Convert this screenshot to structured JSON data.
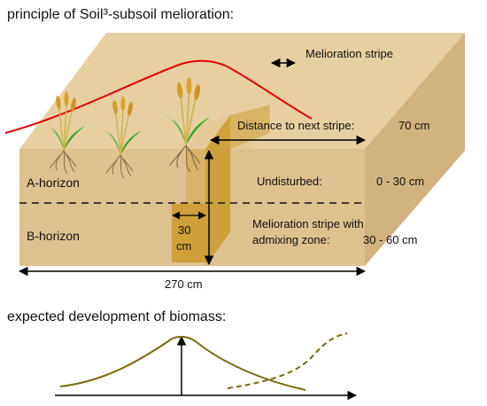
{
  "title": "principle of Soil³-subsoil melioration:",
  "labels": {
    "melioration_stripe": "Melioration stripe",
    "distance_label": "Distance to next stripe:",
    "distance_value": "70 cm",
    "a_horizon": "A-horizon",
    "b_horizon": "B-horizon",
    "undisturbed": "Undisturbed:",
    "undisturbed_depth": "0 - 30 cm",
    "stripe_line1": "Melioration stripe with",
    "stripe_line2": "admixing zone:",
    "stripe_depth": "30 - 60 cm",
    "stripe_width_value": "30",
    "stripe_width_unit": "cm",
    "total_width": "270 cm"
  },
  "subtitle": "expected development of biomass:",
  "colors": {
    "soil_top": "#e8cfa2",
    "soil_front": "#dfc08f",
    "soil_side": "#d2b27f",
    "stripe": "#c8951c",
    "red_curve": "#e00000",
    "biomass_curve": "#7a6a10",
    "plant_green": "#3cb82c",
    "grain": "#d29a2a"
  },
  "icons": [
    "wheat-plant-icon",
    "wheat-plant-icon",
    "wheat-plant-icon"
  ]
}
